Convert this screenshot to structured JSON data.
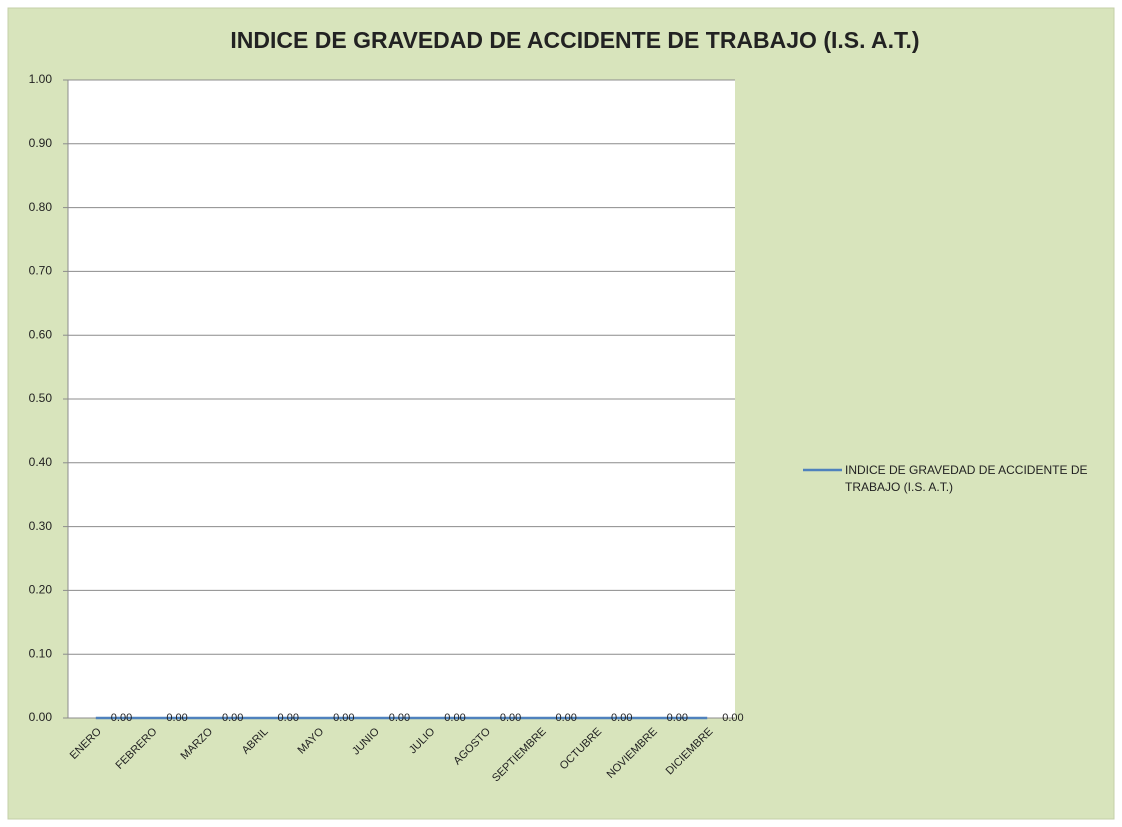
{
  "chart_data": {
    "type": "line",
    "title": "INDICE DE GRAVEDAD DE ACCIDENTE DE TRABAJO (I.S. A.T.)",
    "categories": [
      "ENERO",
      "FEBRERO",
      "MARZO",
      "ABRIL",
      "MAYO",
      "JUNIO",
      "JULIO",
      "AGOSTO",
      "SEPTIEMBRE",
      "OCTUBRE",
      "NOVIEMBRE",
      "DICIEMBRE"
    ],
    "series": [
      {
        "name": "INDICE DE GRAVEDAD DE ACCIDENTE DE TRABAJO (I.S. A.T.)",
        "color": "#4f81bd",
        "values": [
          0,
          0,
          0,
          0,
          0,
          0,
          0,
          0,
          0,
          0,
          0,
          0
        ],
        "value_labels": [
          "0.00",
          "0.00",
          "0.00",
          "0.00",
          "0.00",
          "0.00",
          "0.00",
          "0.00",
          "0.00",
          "0.00",
          "0.00",
          "0.00"
        ]
      }
    ],
    "ylim": [
      0,
      1
    ],
    "yticks": [
      {
        "value": 0,
        "label": "0.00"
      },
      {
        "value": 0.1,
        "label": "0.10"
      },
      {
        "value": 0.2,
        "label": "0.20"
      },
      {
        "value": 0.3,
        "label": "0.30"
      },
      {
        "value": 0.4,
        "label": "0.40"
      },
      {
        "value": 0.5,
        "label": "0.50"
      },
      {
        "value": 0.6,
        "label": "0.60"
      },
      {
        "value": 0.7,
        "label": "0.70"
      },
      {
        "value": 0.8,
        "label": "0.80"
      },
      {
        "value": 0.9,
        "label": "0.90"
      },
      {
        "value": 1,
        "label": "1.00"
      }
    ],
    "grid": true,
    "legend": "right"
  }
}
